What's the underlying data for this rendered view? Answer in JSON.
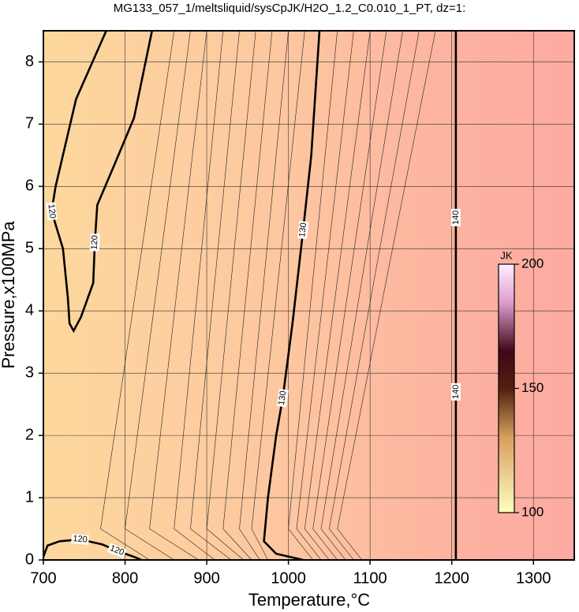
{
  "chart_data": {
    "type": "contour",
    "title": "MG133_057_1/meltsliquid/sysCpJK/H2O_1.2_C0.010_1_PT, dz=1:",
    "x_label": "Temperature,°C",
    "y_label": "Pressure,x100MPa",
    "xlim": [
      700,
      1350
    ],
    "ylim": [
      0,
      8.5
    ],
    "xticks": [
      700,
      800,
      900,
      1000,
      1100,
      1200,
      1300
    ],
    "yticks": [
      0,
      1,
      2,
      3,
      4,
      5,
      6,
      7,
      8
    ],
    "grid": true,
    "background": {
      "x": [
        700,
        1000,
        1205,
        1350
      ],
      "colors": [
        "#fdd89e",
        "#fdc6a0",
        "#fdb2a0",
        "#fdaaa2"
      ]
    },
    "contours": [
      {
        "level": 120,
        "x": [
          777,
          740,
          715,
          710,
          724,
          730,
          732,
          737,
          746,
          761,
          763,
          766,
          787,
          811,
          833
        ],
        "y": [
          8.5,
          7.4,
          6.0,
          5.6,
          5.0,
          4.2,
          3.8,
          3.68,
          3.9,
          4.45,
          5.1,
          5.7,
          6.35,
          7.1,
          8.5
        ]
      },
      {
        "level": 120,
        "x": [
          700,
          705,
          720,
          745,
          772,
          790,
          811,
          820
        ],
        "y": [
          0.05,
          0.23,
          0.3,
          0.33,
          0.25,
          0.15,
          0.05,
          0
        ]
      },
      {
        "level": 130,
        "x": [
          1018,
          985,
          970,
          975,
          985,
          993,
          1005,
          1018,
          1028,
          1038
        ],
        "y": [
          0,
          0.1,
          0.3,
          1.0,
          2.0,
          2.6,
          3.8,
          5.3,
          6.5,
          8.5
        ]
      },
      {
        "level": 140,
        "x": [
          1205,
          1205,
          1205,
          1205
        ],
        "y": [
          0,
          2.7,
          5.5,
          8.5
        ]
      }
    ],
    "minor_contours": [
      {
        "x": [
          830,
          770,
          860
        ],
        "y": [
          0,
          0.5,
          8.5
        ]
      },
      {
        "x": [
          860,
          800,
          880
        ],
        "y": [
          0,
          0.5,
          8.5
        ]
      },
      {
        "x": [
          890,
          830,
          900
        ],
        "y": [
          0,
          0.5,
          8.5
        ]
      },
      {
        "x": [
          910,
          860,
          920
        ],
        "y": [
          0,
          0.5,
          8.5
        ]
      },
      {
        "x": [
          930,
          880,
          940
        ],
        "y": [
          0,
          0.5,
          8.5
        ]
      },
      {
        "x": [
          945,
          900,
          960
        ],
        "y": [
          0,
          0.5,
          8.5
        ]
      },
      {
        "x": [
          955,
          920,
          980
        ],
        "y": [
          0,
          0.5,
          8.5
        ]
      },
      {
        "x": [
          965,
          940,
          1000
        ],
        "y": [
          0,
          0.5,
          8.5
        ]
      },
      {
        "x": [
          975,
          955,
          1020
        ],
        "y": [
          0,
          0.5,
          8.5
        ]
      },
      {
        "x": [
          1030,
          1000,
          1060
        ],
        "y": [
          0,
          0.5,
          8.5
        ]
      },
      {
        "x": [
          1040,
          1010,
          1080
        ],
        "y": [
          0,
          0.5,
          8.5
        ]
      },
      {
        "x": [
          1050,
          1020,
          1100
        ],
        "y": [
          0,
          0.5,
          8.5
        ]
      },
      {
        "x": [
          1060,
          1030,
          1120
        ],
        "y": [
          0,
          0.5,
          8.5
        ]
      },
      {
        "x": [
          1070,
          1040,
          1140
        ],
        "y": [
          0,
          0.5,
          8.5
        ]
      },
      {
        "x": [
          1080,
          1050,
          1160
        ],
        "y": [
          0,
          0.5,
          8.5
        ]
      },
      {
        "x": [
          1090,
          1060,
          1180
        ],
        "y": [
          0,
          0.5,
          8.5
        ]
      }
    ],
    "colorbar": {
      "label": "JK",
      "lim": [
        100,
        200
      ],
      "ticks": [
        100,
        150,
        200
      ],
      "stops": [
        100,
        130,
        150,
        165,
        185,
        200
      ],
      "colors": [
        "#ffffc0",
        "#d8a060",
        "#502010",
        "#400818",
        "#e0a0d0",
        "#fff0ff"
      ]
    }
  }
}
